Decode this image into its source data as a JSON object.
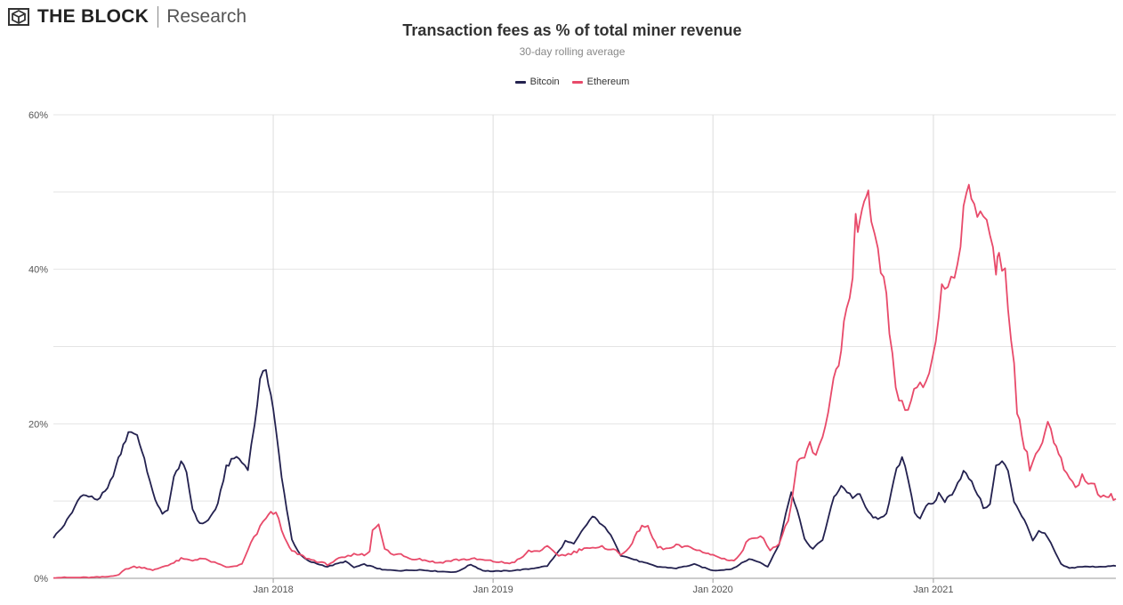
{
  "brand": {
    "logo_icon": "cube-logo-icon",
    "title": "THE BLOCK",
    "subtitle": "Research"
  },
  "chart_data": {
    "type": "line",
    "title": "Transaction fees as % of total miner revenue",
    "subtitle": "30-day rolling average",
    "legend_position": "top-center",
    "grid": true,
    "xlabel": "",
    "ylabel": "",
    "xlim": [
      "2017-01-01",
      "2021-10-31"
    ],
    "ylim": [
      0,
      60
    ],
    "y_ticks": [
      "0%",
      "20%",
      "40%",
      "60%"
    ],
    "x_ticks": [
      {
        "label": "Jan 2018",
        "date": "2018-01-01"
      },
      {
        "label": "Jan 2019",
        "date": "2019-01-01"
      },
      {
        "label": "Jan 2020",
        "date": "2020-01-01"
      },
      {
        "label": "Jan 2021",
        "date": "2021-01-01"
      }
    ],
    "series": [
      {
        "name": "Bitcoin",
        "color": "#23214f",
        "points": [
          [
            "2017-01-01",
            5.3
          ],
          [
            "2017-01-15",
            6.5
          ],
          [
            "2017-02-01",
            8.5
          ],
          [
            "2017-02-15",
            10.8
          ],
          [
            "2017-03-01",
            10.6
          ],
          [
            "2017-03-15",
            10.2
          ],
          [
            "2017-04-01",
            11.5
          ],
          [
            "2017-04-15",
            14.5
          ],
          [
            "2017-05-01",
            18.0
          ],
          [
            "2017-05-10",
            19.2
          ],
          [
            "2017-05-20",
            18.5
          ],
          [
            "2017-06-01",
            15.5
          ],
          [
            "2017-06-15",
            11.0
          ],
          [
            "2017-07-01",
            8.2
          ],
          [
            "2017-07-10",
            9.0
          ],
          [
            "2017-07-20",
            13.0
          ],
          [
            "2017-08-01",
            15.2
          ],
          [
            "2017-08-10",
            13.5
          ],
          [
            "2017-08-20",
            9.0
          ],
          [
            "2017-09-01",
            7.0
          ],
          [
            "2017-09-15",
            7.5
          ],
          [
            "2017-10-01",
            9.5
          ],
          [
            "2017-10-15",
            14.5
          ],
          [
            "2017-11-01",
            15.8
          ],
          [
            "2017-11-10",
            15.0
          ],
          [
            "2017-11-20",
            14.3
          ],
          [
            "2017-12-01",
            20.0
          ],
          [
            "2017-12-10",
            25.5
          ],
          [
            "2017-12-20",
            27.2
          ],
          [
            "2018-01-01",
            22.0
          ],
          [
            "2018-01-15",
            13.0
          ],
          [
            "2018-02-01",
            5.0
          ],
          [
            "2018-02-15",
            3.0
          ],
          [
            "2018-03-01",
            2.2
          ],
          [
            "2018-04-01",
            1.5
          ],
          [
            "2018-05-01",
            2.2
          ],
          [
            "2018-05-15",
            1.4
          ],
          [
            "2018-06-01",
            1.8
          ],
          [
            "2018-06-15",
            1.5
          ],
          [
            "2018-07-01",
            1.1
          ],
          [
            "2018-08-01",
            1.0
          ],
          [
            "2018-09-01",
            1.1
          ],
          [
            "2018-10-01",
            0.9
          ],
          [
            "2018-11-01",
            0.8
          ],
          [
            "2018-11-25",
            1.8
          ],
          [
            "2018-12-15",
            1.0
          ],
          [
            "2019-01-01",
            0.9
          ],
          [
            "2019-02-01",
            1.0
          ],
          [
            "2019-03-01",
            1.2
          ],
          [
            "2019-04-01",
            1.6
          ],
          [
            "2019-04-20",
            3.5
          ],
          [
            "2019-05-01",
            4.8
          ],
          [
            "2019-05-15",
            4.4
          ],
          [
            "2019-06-01",
            6.5
          ],
          [
            "2019-06-15",
            8.0
          ],
          [
            "2019-07-01",
            7.0
          ],
          [
            "2019-07-20",
            5.0
          ],
          [
            "2019-08-01",
            3.0
          ],
          [
            "2019-09-01",
            2.2
          ],
          [
            "2019-10-01",
            1.5
          ],
          [
            "2019-11-01",
            1.3
          ],
          [
            "2019-12-01",
            1.8
          ],
          [
            "2020-01-01",
            1.0
          ],
          [
            "2020-02-01",
            1.2
          ],
          [
            "2020-03-01",
            2.5
          ],
          [
            "2020-03-15",
            2.2
          ],
          [
            "2020-04-01",
            1.5
          ],
          [
            "2020-04-20",
            4.5
          ],
          [
            "2020-05-01",
            8.5
          ],
          [
            "2020-05-10",
            11.0
          ],
          [
            "2020-05-20",
            9.0
          ],
          [
            "2020-06-01",
            5.0
          ],
          [
            "2020-06-15",
            3.8
          ],
          [
            "2020-07-01",
            5.0
          ],
          [
            "2020-07-20",
            10.5
          ],
          [
            "2020-08-01",
            12.0
          ],
          [
            "2020-08-20",
            10.5
          ],
          [
            "2020-09-01",
            10.8
          ],
          [
            "2020-09-15",
            8.5
          ],
          [
            "2020-10-01",
            7.5
          ],
          [
            "2020-10-15",
            8.5
          ],
          [
            "2020-11-01",
            14.0
          ],
          [
            "2020-11-10",
            15.5
          ],
          [
            "2020-11-20",
            13.0
          ],
          [
            "2020-12-01",
            8.5
          ],
          [
            "2020-12-10",
            7.8
          ],
          [
            "2020-12-20",
            9.5
          ],
          [
            "2021-01-01",
            9.5
          ],
          [
            "2021-01-10",
            11.0
          ],
          [
            "2021-01-20",
            10.0
          ],
          [
            "2021-02-01",
            11.0
          ],
          [
            "2021-02-20",
            13.8
          ],
          [
            "2021-03-01",
            13.0
          ],
          [
            "2021-03-15",
            11.0
          ],
          [
            "2021-03-25",
            9.2
          ],
          [
            "2021-04-05",
            9.5
          ],
          [
            "2021-04-15",
            14.5
          ],
          [
            "2021-04-25",
            15.0
          ],
          [
            "2021-05-05",
            14.0
          ],
          [
            "2021-05-15",
            10.0
          ],
          [
            "2021-06-01",
            7.5
          ],
          [
            "2021-06-15",
            5.0
          ],
          [
            "2021-06-25",
            6.0
          ],
          [
            "2021-07-05",
            5.8
          ],
          [
            "2021-07-15",
            4.5
          ],
          [
            "2021-08-01",
            1.8
          ],
          [
            "2021-08-15",
            1.3
          ],
          [
            "2021-09-01",
            1.5
          ],
          [
            "2021-10-01",
            1.5
          ],
          [
            "2021-10-31",
            1.6
          ]
        ]
      },
      {
        "name": "Ethereum",
        "color": "#e84a6a",
        "points": [
          [
            "2017-01-01",
            0.1
          ],
          [
            "2017-02-01",
            0.1
          ],
          [
            "2017-03-01",
            0.1
          ],
          [
            "2017-04-01",
            0.2
          ],
          [
            "2017-04-20",
            0.5
          ],
          [
            "2017-05-01",
            1.2
          ],
          [
            "2017-05-15",
            1.5
          ],
          [
            "2017-06-01",
            1.4
          ],
          [
            "2017-06-15",
            1.0
          ],
          [
            "2017-07-01",
            1.5
          ],
          [
            "2017-07-20",
            2.0
          ],
          [
            "2017-08-01",
            2.5
          ],
          [
            "2017-08-20",
            2.3
          ],
          [
            "2017-09-01",
            2.6
          ],
          [
            "2017-09-20",
            2.2
          ],
          [
            "2017-10-01",
            1.8
          ],
          [
            "2017-10-20",
            1.4
          ],
          [
            "2017-11-10",
            1.8
          ],
          [
            "2017-11-25",
            4.5
          ],
          [
            "2017-12-10",
            6.5
          ],
          [
            "2017-12-20",
            8.0
          ],
          [
            "2018-01-01",
            8.5
          ],
          [
            "2018-01-10",
            8.0
          ],
          [
            "2018-01-20",
            5.0
          ],
          [
            "2018-02-01",
            3.5
          ],
          [
            "2018-03-01",
            2.5
          ],
          [
            "2018-04-01",
            1.8
          ],
          [
            "2018-04-20",
            2.5
          ],
          [
            "2018-05-05",
            2.8
          ],
          [
            "2018-05-20",
            3.2
          ],
          [
            "2018-06-01",
            3.0
          ],
          [
            "2018-06-10",
            3.5
          ],
          [
            "2018-06-15",
            6.5
          ],
          [
            "2018-06-25",
            6.8
          ],
          [
            "2018-07-05",
            3.8
          ],
          [
            "2018-07-20",
            3.0
          ],
          [
            "2018-08-01",
            3.2
          ],
          [
            "2018-08-15",
            2.6
          ],
          [
            "2018-09-01",
            2.5
          ],
          [
            "2018-10-01",
            2.0
          ],
          [
            "2018-11-01",
            2.4
          ],
          [
            "2018-12-01",
            2.5
          ],
          [
            "2019-01-01",
            2.2
          ],
          [
            "2019-01-20",
            2.0
          ],
          [
            "2019-02-01",
            2.0
          ],
          [
            "2019-02-15",
            2.5
          ],
          [
            "2019-03-01",
            3.5
          ],
          [
            "2019-03-15",
            3.5
          ],
          [
            "2019-04-01",
            4.0
          ],
          [
            "2019-04-20",
            3.0
          ],
          [
            "2019-05-01",
            3.0
          ],
          [
            "2019-05-20",
            3.5
          ],
          [
            "2019-06-01",
            4.0
          ],
          [
            "2019-06-20",
            3.8
          ],
          [
            "2019-07-01",
            4.0
          ],
          [
            "2019-07-20",
            3.8
          ],
          [
            "2019-08-01",
            3.0
          ],
          [
            "2019-08-20",
            4.5
          ],
          [
            "2019-09-05",
            7.0
          ],
          [
            "2019-09-15",
            6.5
          ],
          [
            "2019-10-01",
            4.0
          ],
          [
            "2019-10-20",
            3.8
          ],
          [
            "2019-11-01",
            4.2
          ],
          [
            "2019-11-20",
            4.0
          ],
          [
            "2019-12-05",
            3.8
          ],
          [
            "2019-12-20",
            3.2
          ],
          [
            "2020-01-01",
            3.0
          ],
          [
            "2020-01-20",
            2.5
          ],
          [
            "2020-02-05",
            2.3
          ],
          [
            "2020-02-15",
            3.0
          ],
          [
            "2020-03-01",
            5.2
          ],
          [
            "2020-03-15",
            5.5
          ],
          [
            "2020-03-25",
            5.0
          ],
          [
            "2020-04-05",
            3.8
          ],
          [
            "2020-04-20",
            4.5
          ],
          [
            "2020-05-05",
            7.5
          ],
          [
            "2020-05-20",
            14.5
          ],
          [
            "2020-06-01",
            15.5
          ],
          [
            "2020-06-10",
            17.5
          ],
          [
            "2020-06-20",
            15.5
          ],
          [
            "2020-07-01",
            18.0
          ],
          [
            "2020-07-15",
            24.0
          ],
          [
            "2020-08-01",
            30.0
          ],
          [
            "2020-08-10",
            35.0
          ],
          [
            "2020-08-20",
            38.0
          ],
          [
            "2020-08-25",
            46.5
          ],
          [
            "2020-09-01",
            45.5
          ],
          [
            "2020-09-08",
            49.0
          ],
          [
            "2020-09-15",
            49.5
          ],
          [
            "2020-09-20",
            45.0
          ],
          [
            "2020-10-01",
            42.0
          ],
          [
            "2020-10-15",
            36.0
          ],
          [
            "2020-10-25",
            28.0
          ],
          [
            "2020-11-05",
            23.0
          ],
          [
            "2020-11-15",
            21.5
          ],
          [
            "2020-11-25",
            23.5
          ],
          [
            "2020-12-05",
            24.0
          ],
          [
            "2020-12-15",
            25.0
          ],
          [
            "2020-12-25",
            26.5
          ],
          [
            "2021-01-05",
            31.0
          ],
          [
            "2021-01-15",
            37.5
          ],
          [
            "2021-01-25",
            38.0
          ],
          [
            "2021-02-05",
            39.5
          ],
          [
            "2021-02-15",
            44.0
          ],
          [
            "2021-02-25",
            51.0
          ],
          [
            "2021-03-05",
            48.5
          ],
          [
            "2021-03-15",
            47.5
          ],
          [
            "2021-03-25",
            48.0
          ],
          [
            "2021-04-05",
            45.0
          ],
          [
            "2021-04-15",
            39.0
          ],
          [
            "2021-04-20",
            42.0
          ],
          [
            "2021-04-30",
            39.5
          ],
          [
            "2021-05-10",
            32.0
          ],
          [
            "2021-05-20",
            22.0
          ],
          [
            "2021-06-01",
            17.0
          ],
          [
            "2021-06-10",
            14.5
          ],
          [
            "2021-06-20",
            16.0
          ],
          [
            "2021-07-01",
            17.5
          ],
          [
            "2021-07-10",
            20.0
          ],
          [
            "2021-07-20",
            17.5
          ],
          [
            "2021-08-01",
            15.0
          ],
          [
            "2021-08-15",
            12.5
          ],
          [
            "2021-08-25",
            12.0
          ],
          [
            "2021-09-05",
            13.0
          ],
          [
            "2021-09-20",
            12.5
          ],
          [
            "2021-10-01",
            11.0
          ],
          [
            "2021-10-15",
            11.0
          ],
          [
            "2021-10-31",
            10.3
          ]
        ]
      }
    ]
  }
}
